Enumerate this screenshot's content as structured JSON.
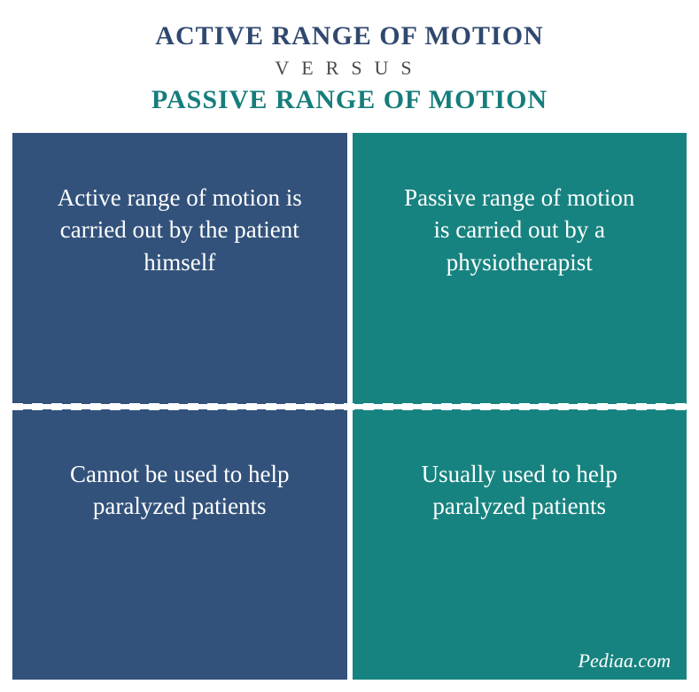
{
  "header": {
    "title_top": "ACTIVE RANGE OF MOTION",
    "versus": "VERSUS",
    "title_bottom": "PASSIVE RANGE OF MOTION",
    "title_top_color": "#2f486f",
    "title_bottom_color": "#167d7b",
    "versus_color": "#4a4a4a",
    "title_fontsize": "30px",
    "versus_fontsize": "22px"
  },
  "grid": {
    "left_color": "#32527b",
    "right_color": "#178380",
    "cell_fontsize": "27px",
    "cells": {
      "top_left": "Active range of motion is carried out by the patient himself",
      "top_right": "Passive range of motion is carried out by a physiotherapist",
      "bottom_left": "Cannot be used to help paralyzed patients",
      "bottom_right": "Usually used to help paralyzed patients"
    }
  },
  "source": {
    "text": "Pediaa.com",
    "fontsize": "22px"
  }
}
